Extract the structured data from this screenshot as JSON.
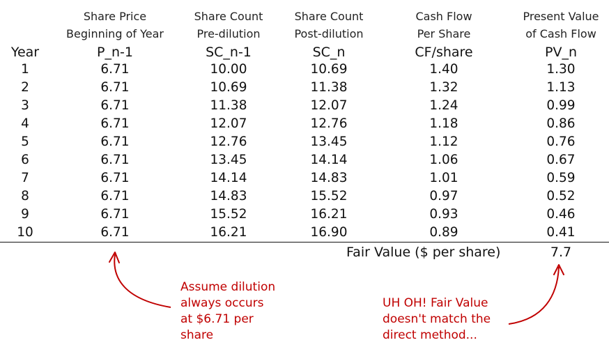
{
  "headers": {
    "year": "Year",
    "col1": [
      "Share Price",
      "Beginning of Year",
      "P_n-1"
    ],
    "col2": [
      "Share Count",
      "Pre-dilution",
      "SC_n-1"
    ],
    "col3": [
      "Share Count",
      "Post-dilution",
      "SC_n"
    ],
    "col4": [
      "Cash Flow",
      "Per Share",
      "CF/share"
    ],
    "col5": [
      "Present Value",
      "of Cash Flow",
      "PV_n"
    ]
  },
  "rows": [
    [
      "1",
      "6.71",
      "10.00",
      "10.69",
      "1.40",
      "1.30"
    ],
    [
      "2",
      "6.71",
      "10.69",
      "11.38",
      "1.32",
      "1.13"
    ],
    [
      "3",
      "6.71",
      "11.38",
      "12.07",
      "1.24",
      "0.99"
    ],
    [
      "4",
      "6.71",
      "12.07",
      "12.76",
      "1.18",
      "0.86"
    ],
    [
      "5",
      "6.71",
      "12.76",
      "13.45",
      "1.12",
      "0.76"
    ],
    [
      "6",
      "6.71",
      "13.45",
      "14.14",
      "1.06",
      "0.67"
    ],
    [
      "7",
      "6.71",
      "14.14",
      "14.83",
      "1.01",
      "0.59"
    ],
    [
      "8",
      "6.71",
      "14.83",
      "15.52",
      "0.97",
      "0.52"
    ],
    [
      "9",
      "6.71",
      "15.52",
      "16.21",
      "0.93",
      "0.46"
    ],
    [
      "10",
      "6.71",
      "16.21",
      "16.90",
      "0.89",
      "0.41"
    ]
  ],
  "fair_value": {
    "label": "Fair Value ($ per share)",
    "value": "7.7"
  },
  "annotations": {
    "left": [
      "Assume dilution",
      "always occurs",
      "at $6.71 per",
      "share"
    ],
    "right": [
      "UH OH! Fair Value",
      "doesn't match the",
      "direct method..."
    ]
  },
  "colors": {
    "annotation": "#c00000",
    "text": "#111111"
  }
}
